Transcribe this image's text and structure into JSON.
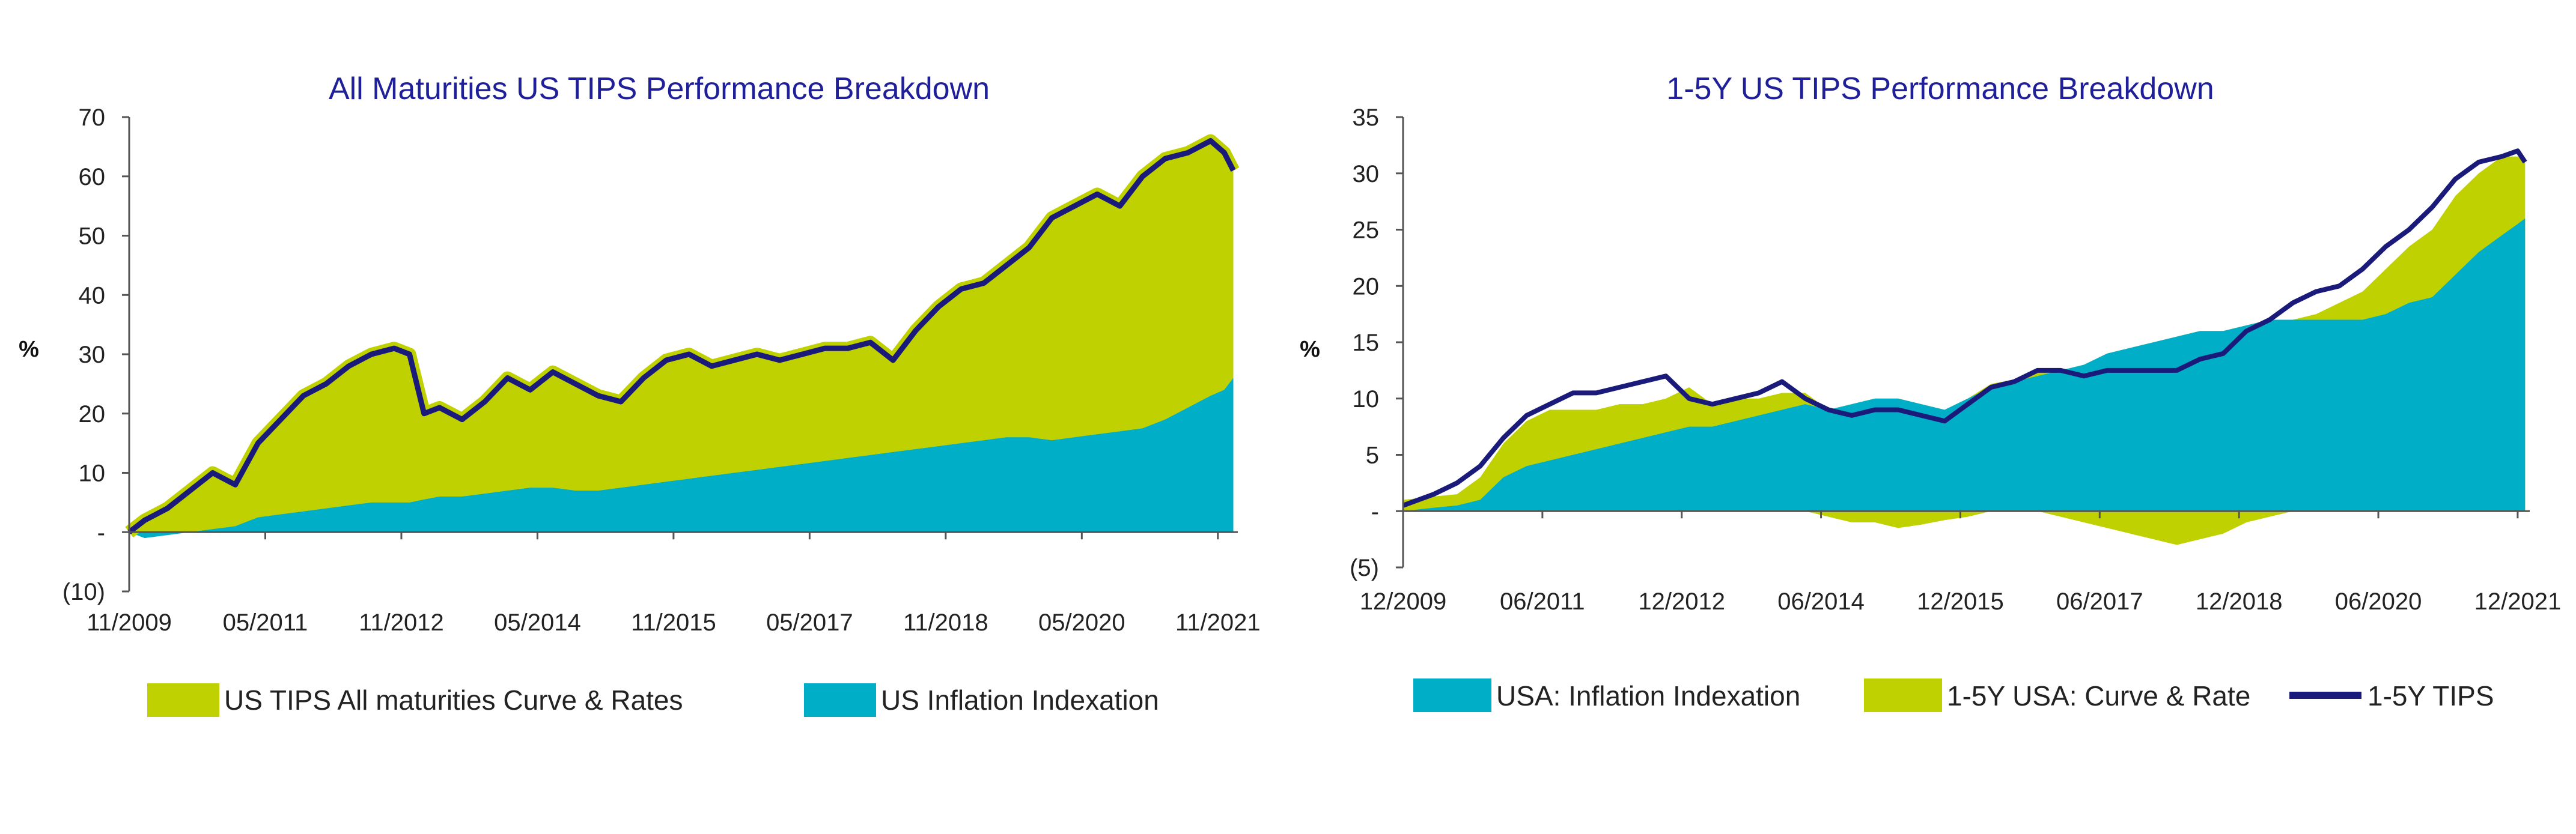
{
  "colors": {
    "curve_rates": "#bfd100",
    "inflation": "#00aec8",
    "tips_line": "#1a1a7a",
    "title": "#1f1f99"
  },
  "chart_data": [
    {
      "type": "area",
      "title": "All Maturities US TIPS Performance Breakdown",
      "ylabel": "%",
      "xlabel": "",
      "ylim": [
        -10,
        70
      ],
      "yticks": [
        -10,
        0,
        10,
        20,
        30,
        40,
        50,
        60,
        70
      ],
      "ytick_labels": [
        "(10)",
        "-",
        "10",
        "20",
        "30",
        "40",
        "50",
        "60",
        "70"
      ],
      "x_range": [
        2009.83,
        2022.05
      ],
      "x_ticks": [
        2009.83,
        2011.33,
        2012.83,
        2014.33,
        2015.83,
        2017.33,
        2018.83,
        2020.33,
        2021.83
      ],
      "x_tick_labels": [
        "11/2009",
        "05/2011",
        "11/2012",
        "05/2014",
        "11/2015",
        "05/2017",
        "11/2018",
        "05/2020",
        "11/2021"
      ],
      "grid": false,
      "legend_position": "bottom",
      "x": [
        2009.83,
        2010.0,
        2010.25,
        2010.5,
        2010.75,
        2011.0,
        2011.25,
        2011.5,
        2011.75,
        2012.0,
        2012.25,
        2012.5,
        2012.75,
        2012.92,
        2013.08,
        2013.25,
        2013.5,
        2013.75,
        2014.0,
        2014.25,
        2014.5,
        2014.75,
        2015.0,
        2015.25,
        2015.5,
        2015.75,
        2016.0,
        2016.25,
        2016.5,
        2016.75,
        2017.0,
        2017.25,
        2017.5,
        2017.75,
        2018.0,
        2018.25,
        2018.5,
        2018.75,
        2019.0,
        2019.25,
        2019.5,
        2019.75,
        2020.0,
        2020.25,
        2020.5,
        2020.75,
        2021.0,
        2021.25,
        2021.5,
        2021.75,
        2021.9,
        2022.0
      ],
      "series": [
        {
          "name": "US TIPS All maturities Curve & Rates",
          "kind": "total",
          "values": [
            0,
            2,
            4,
            7,
            10,
            8,
            15,
            19,
            23,
            25,
            28,
            30,
            31,
            30,
            20,
            21,
            19,
            22,
            26,
            24,
            27,
            25,
            23,
            22,
            26,
            29,
            30,
            28,
            29,
            30,
            29,
            30,
            31,
            31,
            32,
            29,
            34,
            38,
            41,
            42,
            45,
            48,
            53,
            55,
            57,
            55,
            60,
            63,
            64,
            66,
            64,
            61
          ]
        },
        {
          "name": "US Inflation Indexation",
          "kind": "component",
          "values": [
            0,
            -1,
            -0.5,
            0,
            0.5,
            1,
            2.5,
            3,
            3.5,
            4,
            4.5,
            5,
            5,
            5,
            5.5,
            6,
            6,
            6.5,
            7,
            7.5,
            7.5,
            7,
            7,
            7.5,
            8,
            8.5,
            9,
            9.5,
            10,
            10.5,
            11,
            11.5,
            12,
            12.5,
            13,
            13.5,
            14,
            14.5,
            15,
            15.5,
            16,
            16,
            15.5,
            16,
            16.5,
            17,
            17.5,
            19,
            21,
            23,
            24,
            26
          ]
        }
      ]
    },
    {
      "type": "area",
      "title": "1-5Y US TIPS Performance Breakdown",
      "ylabel": "%",
      "xlabel": "",
      "ylim": [
        -5,
        35
      ],
      "yticks": [
        -5,
        0,
        5,
        10,
        15,
        20,
        25,
        30,
        35
      ],
      "ytick_labels": [
        "(5)",
        "-",
        "5",
        "10",
        "15",
        "20",
        "25",
        "30",
        "35"
      ],
      "x_range": [
        2009.92,
        2022.05
      ],
      "x_ticks": [
        2009.92,
        2011.42,
        2012.92,
        2014.42,
        2015.92,
        2017.42,
        2018.92,
        2020.42,
        2021.92
      ],
      "x_tick_labels": [
        "12/2009",
        "06/2011",
        "12/2012",
        "06/2014",
        "12/2015",
        "06/2017",
        "12/2018",
        "06/2020",
        "12/2021"
      ],
      "grid": false,
      "legend_position": "bottom",
      "x": [
        2009.92,
        2010.25,
        2010.5,
        2010.75,
        2011.0,
        2011.25,
        2011.5,
        2011.75,
        2012.0,
        2012.25,
        2012.5,
        2012.75,
        2013.0,
        2013.25,
        2013.5,
        2013.75,
        2014.0,
        2014.25,
        2014.5,
        2014.75,
        2015.0,
        2015.25,
        2015.5,
        2015.75,
        2016.0,
        2016.25,
        2016.5,
        2016.75,
        2017.0,
        2017.25,
        2017.5,
        2017.75,
        2018.0,
        2018.25,
        2018.5,
        2018.75,
        2019.0,
        2019.25,
        2019.5,
        2019.75,
        2020.0,
        2020.25,
        2020.5,
        2020.75,
        2021.0,
        2021.25,
        2021.5,
        2021.75,
        2021.92,
        2022.0
      ],
      "series": [
        {
          "name": "USA: Inflation Indexation",
          "kind": "area",
          "values": [
            0,
            0.3,
            0.5,
            1,
            3,
            4,
            4.5,
            5,
            5.5,
            6,
            6.5,
            7,
            7.5,
            7.5,
            8,
            8.5,
            9,
            9.5,
            9,
            9.5,
            10,
            10,
            9.5,
            9,
            10,
            11,
            11.5,
            12,
            12.5,
            13,
            14,
            14.5,
            15,
            15.5,
            16,
            16,
            16.5,
            17,
            17,
            17,
            17,
            17,
            17.5,
            18.5,
            19,
            21,
            23,
            24.5,
            25.5,
            26
          ]
        },
        {
          "name": "1-5Y USA: Curve & Rate",
          "kind": "curve",
          "values": [
            1,
            1,
            1,
            2,
            3,
            4,
            4.5,
            4,
            3.5,
            3.5,
            3,
            3,
            3.5,
            2,
            2,
            1.5,
            1.5,
            1,
            -0.5,
            -1,
            -1,
            -1.5,
            -1.2,
            -0.8,
            -0.5,
            0.3,
            0.2,
            0.3,
            -0.5,
            -1,
            -1.5,
            -2,
            -2.5,
            -3,
            -2.5,
            -2,
            -1,
            -0.5,
            0,
            0.5,
            1.5,
            2.5,
            4,
            5,
            6,
            7,
            7,
            7,
            6,
            5
          ]
        },
        {
          "name": "1-5Y TIPS",
          "kind": "line",
          "values": [
            0.5,
            1.5,
            2.5,
            4,
            6.5,
            8.5,
            9.5,
            10.5,
            10.5,
            11,
            11.5,
            12,
            10,
            9.5,
            10,
            10.5,
            11.5,
            10,
            9,
            8.5,
            9,
            9,
            8.5,
            8,
            9.5,
            11,
            11.5,
            12.5,
            12.5,
            12,
            12.5,
            12.5,
            12.5,
            12.5,
            13.5,
            14,
            16,
            17,
            18.5,
            19.5,
            20,
            21.5,
            23.5,
            25,
            27,
            29.5,
            31,
            31.5,
            32,
            31
          ]
        }
      ]
    }
  ]
}
